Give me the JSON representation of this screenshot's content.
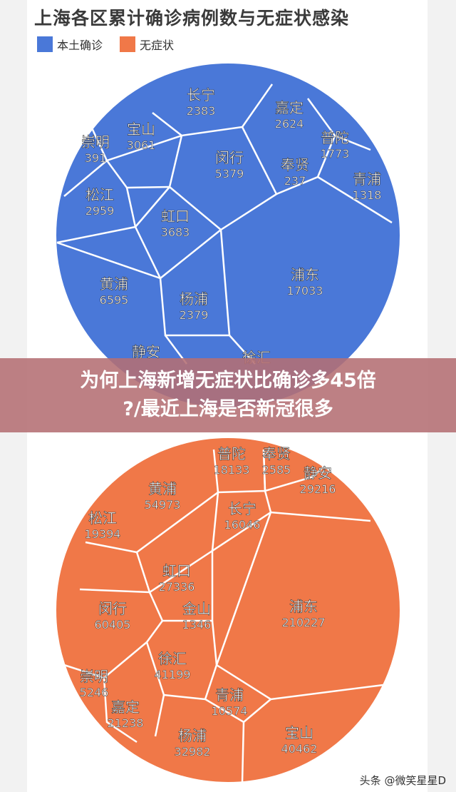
{
  "title": "上海各区累计确诊病例数与无症状感染",
  "legend": [
    {
      "label": "本土确诊",
      "color": "#4a78d8"
    },
    {
      "label": "无症状",
      "color": "#f07848"
    }
  ],
  "banner": {
    "line1": "为何上海新增无症状比确诊多45倍",
    "line2": "?/最近上海是否新冠很多"
  },
  "watermark": "头条 @微笑星星D",
  "colors": {
    "confirmed": "#4a78d8",
    "asymptomatic": "#f07848",
    "edge": "#ffffff"
  },
  "chart_data": [
    {
      "type": "voronoi-treemap",
      "series": "本土确诊",
      "cells": [
        {
          "label": "长宁",
          "value": 2383
        },
        {
          "label": "嘉定",
          "value": 2624
        },
        {
          "label": "宝山",
          "value": 3061
        },
        {
          "label": "崇明",
          "value": 391
        },
        {
          "label": "普陀",
          "value": 1773
        },
        {
          "label": "闵行",
          "value": 5379
        },
        {
          "label": "奉贤",
          "value": 237
        },
        {
          "label": "青浦",
          "value": 1318
        },
        {
          "label": "松江",
          "value": 2959
        },
        {
          "label": "虹口",
          "value": 3683
        },
        {
          "label": "浦东",
          "value": 17033
        },
        {
          "label": "黄浦",
          "value": 6595
        },
        {
          "label": "杨浦",
          "value": 2379
        },
        {
          "label": "静安",
          "value": null
        },
        {
          "label": "徐汇",
          "value": null
        }
      ]
    },
    {
      "type": "voronoi-treemap",
      "series": "无症状",
      "cells": [
        {
          "label": "普陀",
          "value": 18133
        },
        {
          "label": "奉贤",
          "value": 2585
        },
        {
          "label": "静安",
          "value": 29216
        },
        {
          "label": "黄浦",
          "value": 54973
        },
        {
          "label": "长宁",
          "value": 16046
        },
        {
          "label": "松江",
          "value": 19394
        },
        {
          "label": "虹口",
          "value": 27336
        },
        {
          "label": "浦东",
          "value": 210227
        },
        {
          "label": "闵行",
          "value": 60405
        },
        {
          "label": "金山",
          "value": 1346
        },
        {
          "label": "徐汇",
          "value": 41199
        },
        {
          "label": "崇明",
          "value": 5246
        },
        {
          "label": "嘉定",
          "value": 21238
        },
        {
          "label": "青浦",
          "value": 10574
        },
        {
          "label": "杨浦",
          "value": 32982
        },
        {
          "label": "宝山",
          "value": 40462
        }
      ]
    }
  ]
}
